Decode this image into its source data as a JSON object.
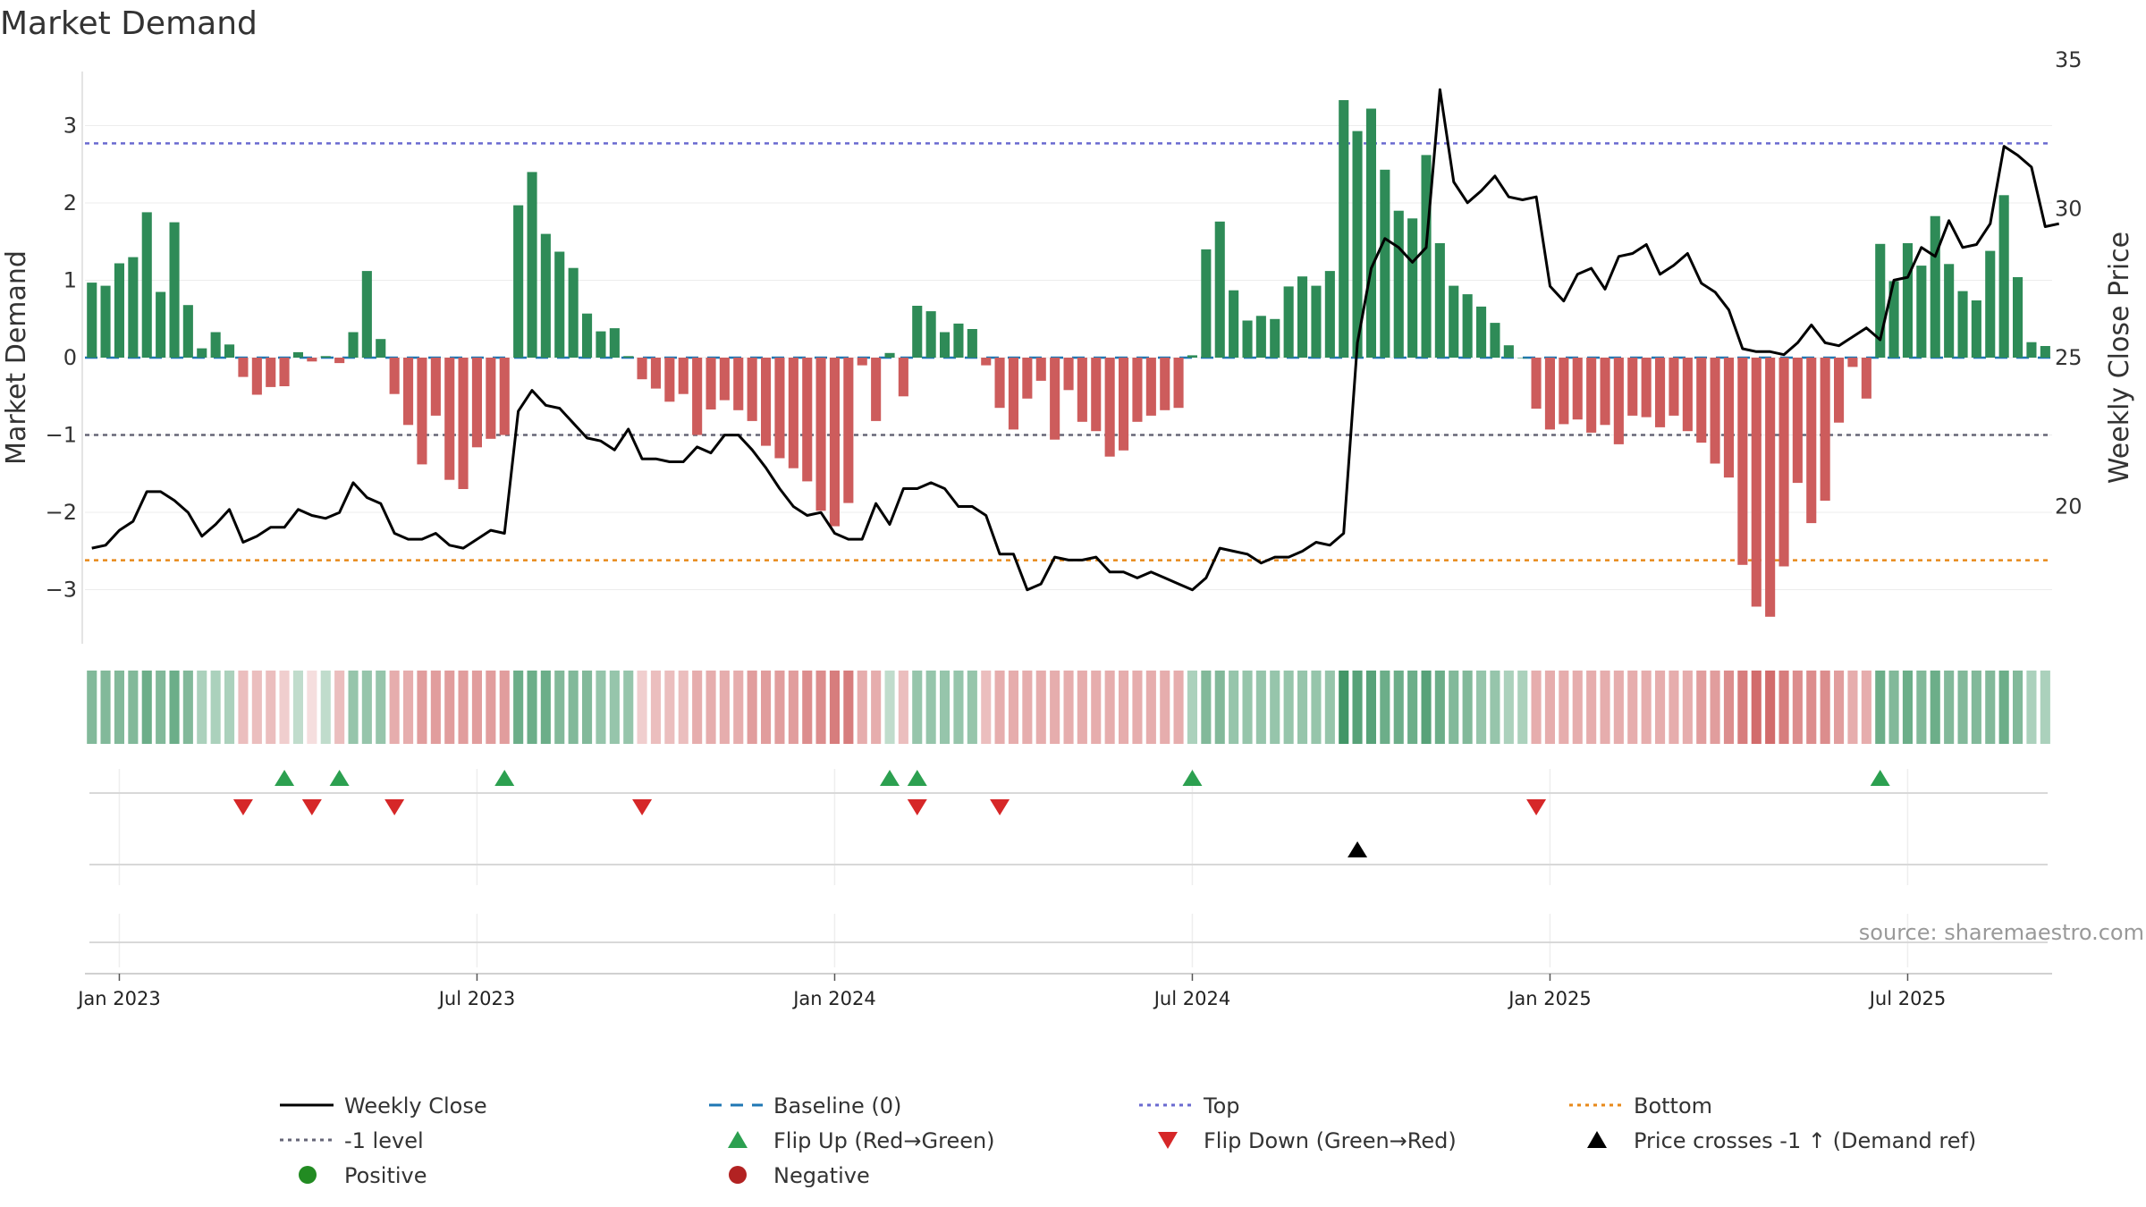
{
  "chart_data": {
    "type": "bar",
    "title": "Market Demand",
    "ylabel": "Market Demand",
    "y2label": "Weekly Close Price",
    "ylim": [
      -3.7,
      3.7
    ],
    "y2lim": [
      15,
      35.6
    ],
    "yticks": [
      3,
      2,
      1,
      0,
      -1,
      -2,
      -3
    ],
    "ytick_labels": [
      "3",
      "2",
      "1",
      "0",
      "−1",
      "−2",
      "−3"
    ],
    "y2ticks": [
      35,
      30,
      25,
      20
    ],
    "xticks": [
      "Jan 2023",
      "Jul 2023",
      "Jan 2024",
      "Jul 2024",
      "Jan 2025",
      "Jul 2025"
    ],
    "week_index_ticks": [
      2,
      28,
      54,
      80,
      106,
      132
    ],
    "reference_levels": {
      "top": 2.77,
      "minus_one": -1,
      "bottom": -2.62
    },
    "colors": {
      "positive": "#2e8b57",
      "negative": "#cd5c5c",
      "top": "#6a6ad0",
      "bottom": "#e8891a",
      "minus_one": "#666677",
      "baseline": "#1f77b4",
      "flip_up": "#2ca050",
      "flip_down": "#d62728",
      "price_cross": "#000000",
      "close": "#000000",
      "legend_positive": "#228b22",
      "legend_negative": "#b22222"
    },
    "series": [
      {
        "name": "Market Demand",
        "values": [
          0.97,
          0.93,
          1.22,
          1.3,
          1.88,
          0.85,
          1.75,
          0.68,
          0.12,
          0.33,
          0.17,
          -0.25,
          -0.48,
          -0.38,
          -0.37,
          0.07,
          -0.05,
          0.02,
          -0.07,
          0.33,
          1.12,
          0.24,
          -0.47,
          -0.87,
          -1.38,
          -0.75,
          -1.58,
          -1.7,
          -1.16,
          -1.05,
          -1.0,
          1.97,
          2.4,
          1.6,
          1.37,
          1.16,
          0.57,
          0.34,
          0.38,
          0.02,
          -0.28,
          -0.4,
          -0.57,
          -0.47,
          -1.0,
          -0.67,
          -0.55,
          -0.68,
          -0.82,
          -1.14,
          -1.3,
          -1.43,
          -1.6,
          -1.98,
          -2.18,
          -1.88,
          -0.1,
          -0.82,
          0.06,
          -0.5,
          0.67,
          0.6,
          0.33,
          0.44,
          0.37,
          -0.1,
          -0.65,
          -0.93,
          -0.53,
          -0.3,
          -1.06,
          -0.42,
          -0.83,
          -0.95,
          -1.28,
          -1.2,
          -0.83,
          -0.75,
          -0.68,
          -0.65,
          0.03,
          1.4,
          1.76,
          0.87,
          0.48,
          0.54,
          0.5,
          0.92,
          1.05,
          0.93,
          1.12,
          3.33,
          2.93,
          3.22,
          2.43,
          1.9,
          1.8,
          2.62,
          1.48,
          0.93,
          0.82,
          0.66,
          0.45,
          0.16,
          0.0,
          -0.66,
          -0.93,
          -0.86,
          -0.8,
          -0.97,
          -0.87,
          -1.12,
          -0.75,
          -0.77,
          -0.9,
          -0.75,
          -0.95,
          -1.1,
          -1.37,
          -1.55,
          -2.68,
          -3.22,
          -3.35,
          -2.7,
          -1.62,
          -2.14,
          -1.85,
          -0.84,
          -0.12,
          -0.53,
          1.47,
          0.99,
          1.48,
          1.19,
          1.83,
          1.21,
          0.86,
          0.74,
          1.38,
          2.1,
          1.04,
          0.2,
          0.15
        ]
      },
      {
        "name": "Weekly Close",
        "values": [
          18.6,
          18.7,
          19.2,
          19.5,
          20.5,
          20.5,
          20.2,
          19.8,
          19.0,
          19.4,
          19.9,
          18.8,
          19.0,
          19.3,
          19.3,
          19.9,
          19.7,
          19.6,
          19.8,
          20.8,
          20.3,
          20.1,
          19.1,
          18.9,
          18.9,
          19.1,
          18.7,
          18.6,
          18.9,
          19.2,
          19.1,
          23.2,
          23.9,
          23.4,
          23.3,
          22.8,
          22.3,
          22.2,
          21.9,
          22.6,
          21.6,
          21.6,
          21.5,
          21.5,
          22.0,
          21.8,
          22.4,
          22.4,
          21.9,
          21.3,
          20.6,
          20.0,
          19.7,
          19.8,
          19.1,
          18.9,
          18.9,
          20.1,
          19.4,
          20.6,
          20.6,
          20.8,
          20.6,
          20.0,
          20.0,
          19.7,
          18.4,
          18.4,
          17.2,
          17.4,
          18.3,
          18.2,
          18.2,
          18.3,
          17.8,
          17.8,
          17.6,
          17.8,
          17.6,
          17.4,
          17.2,
          17.6,
          18.6,
          18.5,
          18.4,
          18.1,
          18.3,
          18.3,
          18.5,
          18.8,
          18.7,
          19.1,
          25.5,
          28.0,
          29.0,
          28.7,
          28.2,
          28.7,
          34.0,
          30.9,
          30.2,
          30.6,
          31.1,
          30.4,
          30.3,
          30.4,
          27.4,
          26.9,
          27.8,
          28.0,
          27.3,
          28.4,
          28.5,
          28.8,
          27.8,
          28.1,
          28.5,
          27.5,
          27.2,
          26.6,
          25.3,
          25.2,
          25.2,
          25.1,
          25.5,
          26.1,
          25.5,
          25.4,
          25.7,
          26.0,
          25.6,
          27.6,
          27.7,
          28.7,
          28.4,
          29.6,
          28.7,
          28.8,
          29.5,
          32.1,
          31.8,
          31.4,
          29.4,
          29.5
        ]
      }
    ],
    "strip_values": [
      0.6,
      0.6,
      0.6,
      0.6,
      0.7,
      0.6,
      0.7,
      0.6,
      0.4,
      0.4,
      0.4,
      0.4,
      0.4,
      0.4,
      0.3,
      0.3,
      0.2,
      0.3,
      0.4,
      0.5,
      0.5,
      0.5,
      0.5,
      0.5,
      0.6,
      0.6,
      0.6,
      0.6,
      0.6,
      0.6,
      0.6,
      0.7,
      0.7,
      0.7,
      0.6,
      0.6,
      0.6,
      0.5,
      0.5,
      0.5,
      0.3,
      0.4,
      0.4,
      0.4,
      0.5,
      0.5,
      0.5,
      0.5,
      0.6,
      0.6,
      0.6,
      0.6,
      0.7,
      0.7,
      0.8,
      0.8,
      0.5,
      0.5,
      0.3,
      0.4,
      0.5,
      0.5,
      0.5,
      0.5,
      0.5,
      0.4,
      0.5,
      0.5,
      0.5,
      0.5,
      0.5,
      0.5,
      0.5,
      0.5,
      0.5,
      0.5,
      0.5,
      0.5,
      0.5,
      0.5,
      0.4,
      0.6,
      0.6,
      0.5,
      0.5,
      0.5,
      0.5,
      0.5,
      0.5,
      0.5,
      0.5,
      0.9,
      0.8,
      0.8,
      0.7,
      0.7,
      0.7,
      0.8,
      0.7,
      0.6,
      0.6,
      0.5,
      0.5,
      0.4,
      0.4,
      0.5,
      0.5,
      0.5,
      0.5,
      0.5,
      0.5,
      0.5,
      0.5,
      0.5,
      0.5,
      0.5,
      0.5,
      0.6,
      0.6,
      0.7,
      0.8,
      0.9,
      0.9,
      0.8,
      0.7,
      0.7,
      0.7,
      0.6,
      0.5,
      0.5,
      0.7,
      0.6,
      0.7,
      0.6,
      0.7,
      0.6,
      0.6,
      0.6,
      0.6,
      0.7,
      0.6,
      0.4,
      0.4
    ],
    "flip_up_weeks": [
      14,
      18,
      30,
      58,
      60,
      80,
      130
    ],
    "flip_down_weeks": [
      11,
      16,
      22,
      40,
      60,
      66,
      105
    ],
    "price_cross_weeks": [
      92
    ],
    "legend": {
      "weekly_close": "Weekly Close",
      "baseline": "Baseline (0)",
      "top": "Top",
      "bottom": "Bottom",
      "minus_one": "-1 level",
      "flip_up": "Flip Up (Red→Green)",
      "flip_down": "Flip Down (Green→Red)",
      "price_cross": "Price crosses -1 ↑ (Demand ref)",
      "positive": "Positive",
      "negative": "Negative"
    },
    "source": "source: sharemaestro.com"
  }
}
